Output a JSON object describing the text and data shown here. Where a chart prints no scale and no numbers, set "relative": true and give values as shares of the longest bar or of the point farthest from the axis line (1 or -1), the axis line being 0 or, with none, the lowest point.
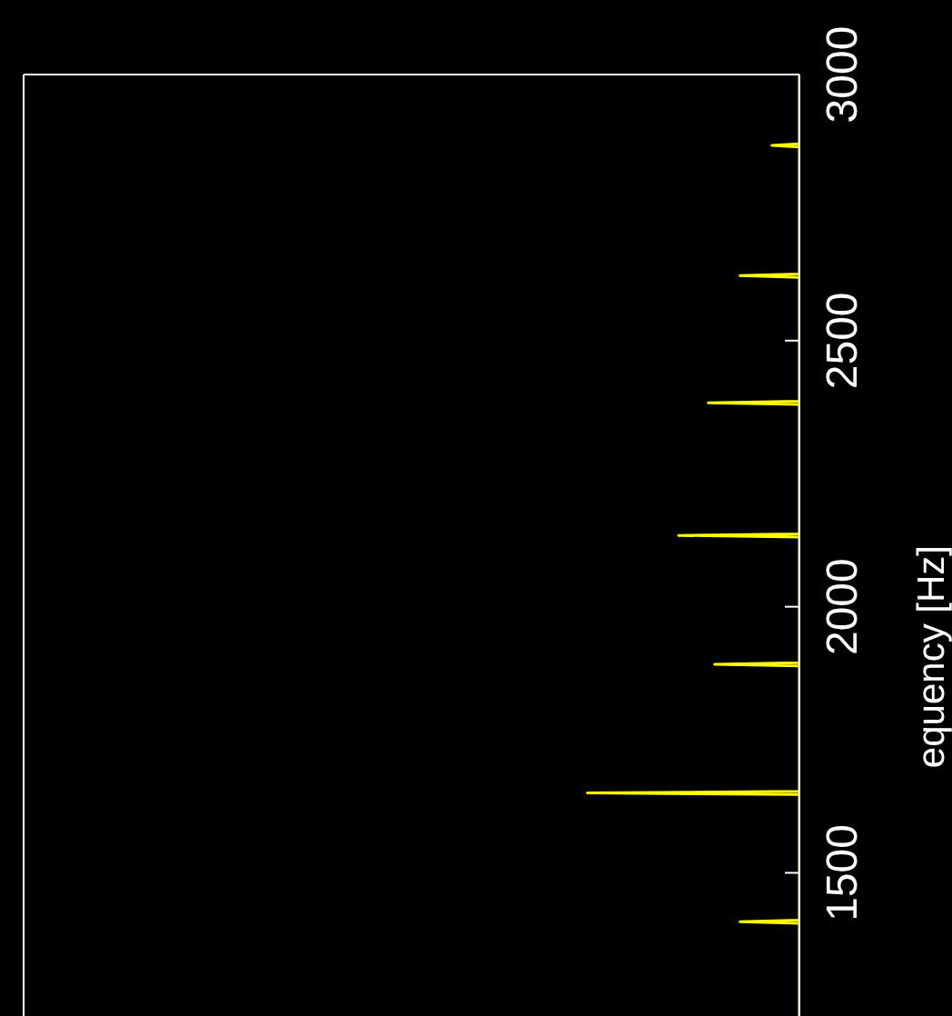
{
  "chart_data": {
    "type": "line",
    "orientation": "horizontal",
    "ylabel": "equency [Hz]",
    "relative": true,
    "ylim": [
      1231,
      3000
    ],
    "yticks": [
      1500,
      2000,
      2500,
      3000
    ],
    "tick_labels": "y",
    "grid": false,
    "legend": false,
    "marker": "none",
    "x": [
      1231,
      1405,
      1408,
      1411,
      1647,
      1650,
      1653,
      1889,
      1892,
      1895,
      2131,
      2134,
      2137,
      2380,
      2383,
      2386,
      2619,
      2622,
      2625,
      2864,
      2867,
      2870,
      3000
    ],
    "series": [
      {
        "color": "#ffff00",
        "values": [
          0,
          0,
          -0.28,
          0,
          0,
          -1,
          0,
          0,
          -0.4,
          0,
          0,
          -0.57,
          0,
          0,
          -0.43,
          0,
          0,
          -0.28,
          0,
          0,
          -0.13,
          0,
          0
        ]
      }
    ]
  }
}
